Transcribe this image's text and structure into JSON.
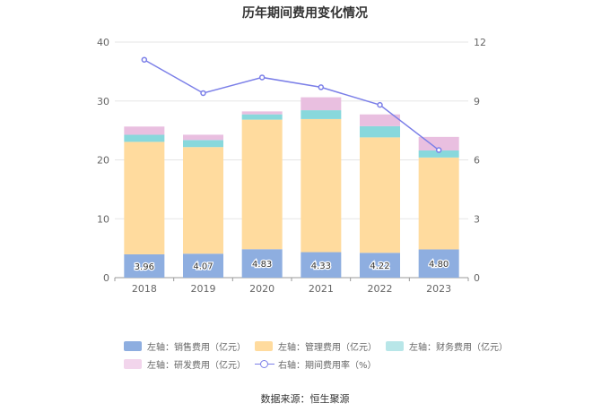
{
  "chart_data": {
    "type": "bar",
    "title": "历年期间费用变化情况",
    "categories": [
      "2018",
      "2019",
      "2020",
      "2021",
      "2022",
      "2023"
    ],
    "series": [
      {
        "name": "左轴：销售费用（亿元）",
        "axis": "left",
        "color": "#8eaee0",
        "values": [
          3.96,
          4.07,
          4.83,
          4.33,
          4.22,
          4.8
        ],
        "labels": [
          "3.96",
          "4.07",
          "4.83",
          "4.33",
          "4.22",
          "4.80"
        ]
      },
      {
        "name": "左轴：管理费用（亿元）",
        "axis": "left",
        "color": "#ffdb9e",
        "values": [
          19.1,
          18.1,
          22.0,
          22.6,
          19.6,
          15.6
        ]
      },
      {
        "name": "左轴：财务费用（亿元）",
        "axis": "left",
        "color": "#88d8dc",
        "values": [
          1.2,
          1.2,
          0.9,
          1.5,
          1.9,
          1.2
        ]
      },
      {
        "name": "左轴：研发费用（亿元）",
        "axis": "left",
        "color": "#e9bfe0",
        "values": [
          1.4,
          0.9,
          0.5,
          2.2,
          2.0,
          2.3
        ]
      },
      {
        "name": "右轴：期间费用率（%）",
        "axis": "right",
        "type": "line",
        "color": "#7b7fe8",
        "values": [
          11.1,
          9.4,
          10.2,
          9.7,
          8.8,
          6.5
        ]
      }
    ],
    "yleft": {
      "min": 0,
      "max": 40,
      "ticks": [
        0,
        10,
        20,
        30,
        40
      ]
    },
    "yright": {
      "min": 0,
      "max": 12,
      "ticks": [
        0,
        3,
        6,
        9,
        12
      ]
    },
    "grid": true,
    "legend_position": "bottom"
  },
  "legend": {
    "sales": "左轴：销售费用（亿元）",
    "admin": "左轴：管理费用（亿元）",
    "finance": "左轴：财务费用（亿元）",
    "rd": "左轴：研发费用（亿元）",
    "rate": "右轴：期间费用率（%）"
  },
  "colors": {
    "sales": "#8eaee0",
    "admin": "#ffdb9e",
    "finance": "#88d8dc",
    "rd": "#e9bfe0",
    "rate": "#7b7fe8"
  },
  "source": "数据来源：恒生聚源"
}
